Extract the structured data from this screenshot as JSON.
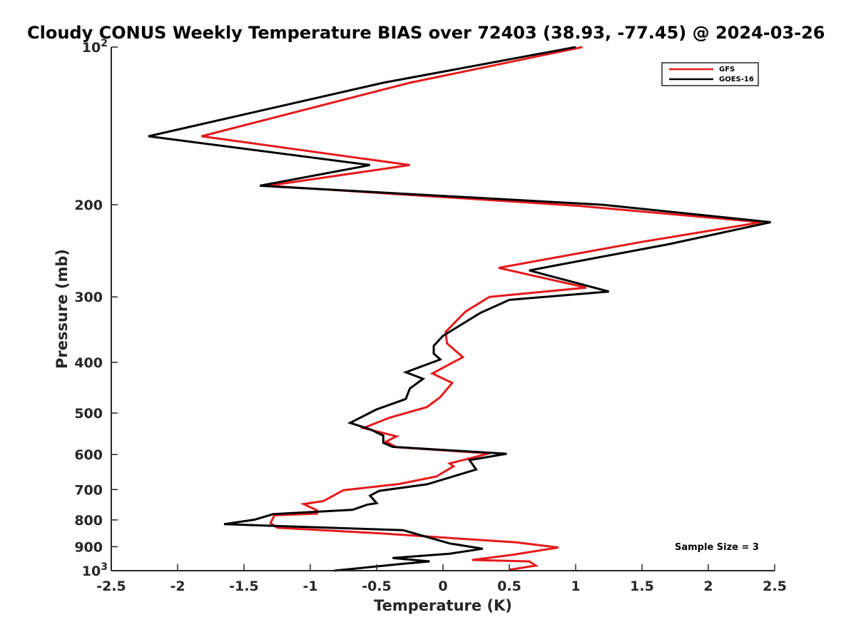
{
  "chart_data": {
    "type": "line",
    "title": "Cloudy CONUS Weekly Temperature BIAS over 72403 (38.93, -77.45) @ 2024-03-26",
    "xlabel": "Temperature (K)",
    "ylabel": "Pressure (mb)",
    "xlim": [
      -2.5,
      2.5
    ],
    "ylim": [
      100,
      1000
    ],
    "yscale": "log",
    "y_reversed": true,
    "grid": false,
    "legend_position": "top-right",
    "annotation": "Sample Size = 3",
    "x_ticks": [
      {
        "value": -2.5,
        "label": "-2.5"
      },
      {
        "value": -2,
        "label": "-2"
      },
      {
        "value": -1.5,
        "label": "-1.5"
      },
      {
        "value": -1,
        "label": "-1"
      },
      {
        "value": -0.5,
        "label": "-0.5"
      },
      {
        "value": 0,
        "label": "0"
      },
      {
        "value": 0.5,
        "label": "0.5"
      },
      {
        "value": 1,
        "label": "1"
      },
      {
        "value": 1.5,
        "label": "1.5"
      },
      {
        "value": 2,
        "label": "2"
      },
      {
        "value": 2.5,
        "label": "2.5"
      }
    ],
    "y_ticks": [
      {
        "value": 100,
        "label": "10",
        "sup": "2"
      },
      {
        "value": 200,
        "label": "200",
        "sup": ""
      },
      {
        "value": 300,
        "label": "300",
        "sup": ""
      },
      {
        "value": 400,
        "label": "400",
        "sup": ""
      },
      {
        "value": 500,
        "label": "500",
        "sup": ""
      },
      {
        "value": 600,
        "label": "600",
        "sup": ""
      },
      {
        "value": 700,
        "label": "700",
        "sup": ""
      },
      {
        "value": 800,
        "label": "800",
        "sup": ""
      },
      {
        "value": 900,
        "label": "900",
        "sup": ""
      },
      {
        "value": 1000,
        "label": "10",
        "sup": "3"
      }
    ],
    "series": [
      {
        "name": "GFS",
        "color": "#e41a1c",
        "points": [
          [
            1.05,
            100
          ],
          [
            -0.25,
            117
          ],
          [
            -1.82,
            148
          ],
          [
            -0.25,
            168
          ],
          [
            -1.32,
            184
          ],
          [
            1.02,
            201
          ],
          [
            2.4,
            216
          ],
          [
            1.48,
            236
          ],
          [
            0.42,
            264
          ],
          [
            1.08,
            288
          ],
          [
            0.35,
            300
          ],
          [
            0.17,
            320
          ],
          [
            0.02,
            350
          ],
          [
            0.03,
            368
          ],
          [
            0.15,
            391
          ],
          [
            -0.08,
            420
          ],
          [
            0.07,
            438
          ],
          [
            -0.02,
            466
          ],
          [
            -0.12,
            487
          ],
          [
            -0.4,
            510
          ],
          [
            -0.6,
            534
          ],
          [
            -0.35,
            554
          ],
          [
            -0.43,
            567
          ],
          [
            -0.35,
            581
          ],
          [
            0.35,
            597
          ],
          [
            0.05,
            624
          ],
          [
            0.08,
            632
          ],
          [
            -0.05,
            661
          ],
          [
            -0.33,
            683
          ],
          [
            -0.75,
            702
          ],
          [
            -0.9,
            736
          ],
          [
            -1.05,
            746
          ],
          [
            -0.95,
            767
          ],
          [
            -0.95,
            778
          ],
          [
            -1.27,
            784
          ],
          [
            -1.3,
            811
          ],
          [
            -1.25,
            828
          ],
          [
            -0.5,
            848
          ],
          [
            0.55,
            883
          ],
          [
            0.87,
            903
          ],
          [
            0.53,
            932
          ],
          [
            0.22,
            954
          ],
          [
            0.65,
            960
          ],
          [
            0.7,
            978
          ],
          [
            0.5,
            996
          ]
        ]
      },
      {
        "name": "GOES-16",
        "color": "#000000",
        "points": [
          [
            1.0,
            100
          ],
          [
            -0.45,
            117
          ],
          [
            -2.22,
            148
          ],
          [
            -0.55,
            168
          ],
          [
            -1.38,
            184
          ],
          [
            1.2,
            200
          ],
          [
            2.47,
            216
          ],
          [
            1.7,
            238
          ],
          [
            0.65,
            267
          ],
          [
            1.25,
            293
          ],
          [
            0.5,
            304
          ],
          [
            0.28,
            322
          ],
          [
            0.0,
            356
          ],
          [
            -0.07,
            372
          ],
          [
            -0.07,
            385
          ],
          [
            -0.02,
            395
          ],
          [
            -0.28,
            418
          ],
          [
            -0.15,
            430
          ],
          [
            -0.25,
            449
          ],
          [
            -0.28,
            470
          ],
          [
            -0.5,
            492
          ],
          [
            -0.7,
            522
          ],
          [
            -0.55,
            537
          ],
          [
            -0.45,
            552
          ],
          [
            -0.45,
            570
          ],
          [
            -0.38,
            580
          ],
          [
            0.48,
            598
          ],
          [
            0.2,
            615
          ],
          [
            0.25,
            641
          ],
          [
            -0.12,
            684
          ],
          [
            -0.48,
            704
          ],
          [
            -0.55,
            719
          ],
          [
            -0.5,
            743
          ],
          [
            -0.57,
            748
          ],
          [
            -0.68,
            765
          ],
          [
            -1.28,
            780
          ],
          [
            -1.42,
            799
          ],
          [
            -1.65,
            815
          ],
          [
            -0.3,
            837
          ],
          [
            0.05,
            887
          ],
          [
            0.3,
            908
          ],
          [
            0.05,
            928
          ],
          [
            -0.38,
            946
          ],
          [
            -0.1,
            960
          ],
          [
            -0.33,
            972
          ],
          [
            -0.82,
            1000
          ]
        ]
      }
    ]
  }
}
